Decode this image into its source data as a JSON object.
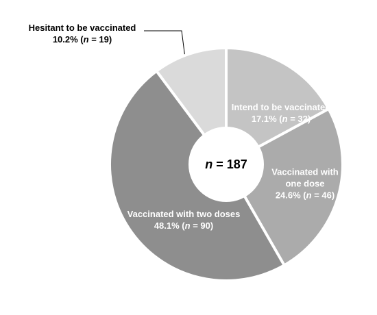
{
  "chart_data": {
    "type": "pie",
    "categories": [
      "Intend to be vaccinated",
      "Vaccinated with one dose",
      "Vaccinated with two doses",
      "Hesitant to be vaccinated"
    ],
    "values": [
      17.1,
      24.6,
      48.1,
      10.2
    ],
    "value_labels": [
      "17.1% (n = 32)",
      "24.6% (n = 46)",
      "48.1% (n = 90)",
      "10.2% (n = 19)"
    ],
    "colors": [
      "#c4c4c4",
      "#ababab",
      "#8e8e8e",
      "#dadada"
    ],
    "center_label": "n = 187"
  }
}
